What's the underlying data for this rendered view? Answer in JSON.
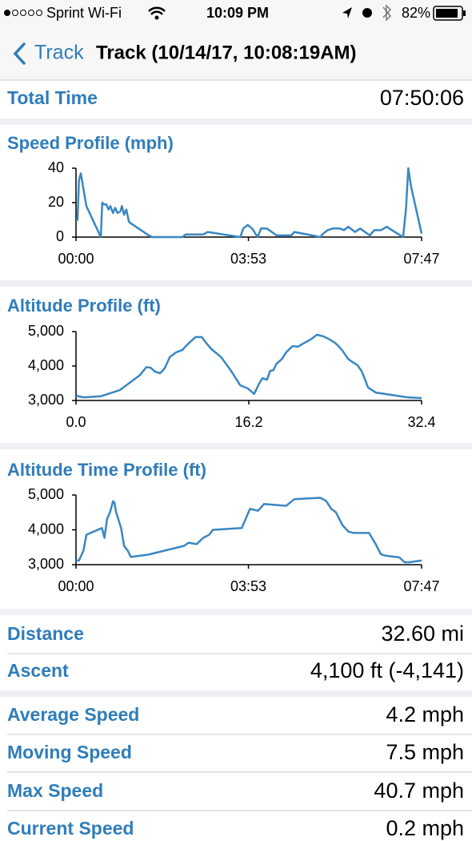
{
  "status_bar": {
    "carrier": "Sprint Wi-Fi",
    "time": "10:09 PM",
    "battery": "82%"
  },
  "nav": {
    "back": "Track",
    "title": "Track (10/14/17, 10:08:19AM)"
  },
  "summary": [
    {
      "label": "Total Time",
      "value": "07:50:06"
    }
  ],
  "chart_data": [
    {
      "type": "line",
      "title": "Speed Profile (mph)",
      "color": "#3a87c2",
      "x": [
        0,
        2,
        4,
        6.5,
        10,
        14,
        33.5,
        35.5,
        37.5,
        41,
        44,
        46.5,
        50,
        53,
        56,
        60,
        62,
        65,
        68,
        71.5,
        74,
        98.5,
        103,
        144,
        148,
        172,
        178,
        200,
        222,
        226,
        232,
        238,
        245.5,
        250,
        258,
        271,
        291,
        295,
        319,
        330,
        334,
        340,
        347,
        357,
        362,
        368,
        377,
        384,
        397,
        403,
        412,
        420,
        427,
        442,
        446,
        449,
        453,
        467
      ],
      "values": [
        10,
        10,
        33,
        37,
        28,
        18,
        0,
        20,
        19,
        19,
        16,
        18,
        14,
        17,
        14,
        15,
        18,
        13,
        16,
        9,
        8,
        1,
        0,
        0,
        1.5,
        1.5,
        3,
        1.5,
        0,
        5,
        7,
        5,
        0,
        5,
        5,
        1,
        1,
        3,
        1,
        0,
        2,
        4,
        5,
        5,
        4,
        6,
        3,
        5,
        1,
        4,
        4,
        6,
        4,
        0,
        17,
        40,
        29,
        2
      ],
      "xlim": [
        0,
        467
      ],
      "xticks": [
        {
          "value": 0,
          "label": "00:00"
        },
        {
          "value": 233,
          "label": "03:53"
        },
        {
          "value": 467,
          "label": "07:47"
        }
      ],
      "ylim": [
        0,
        40
      ],
      "yticks": [
        0,
        20,
        40
      ]
    },
    {
      "type": "line",
      "title": "Altitude Profile (ft)",
      "color": "#3a87c2",
      "x": [
        0,
        0.7,
        2.3,
        4.1,
        6,
        6.6,
        7,
        7.4,
        7.9,
        8.3,
        8.8,
        9.4,
        10,
        10.3,
        10.7,
        11.2,
        11.8,
        12.2,
        12.7,
        13.6,
        14.5,
        15.4,
        16.1,
        16.7,
        17.2,
        17.5,
        17.9,
        18.2,
        18.5,
        18.8,
        19.3,
        19.7,
        20.3,
        20.8,
        21.4,
        22,
        22.6,
        23.2,
        23.8,
        24.3,
        24.6,
        25,
        25.5,
        25.9,
        26.4,
        26.8,
        27.4,
        28.1,
        29.6,
        31.1,
        32.4
      ],
      "values": [
        3140,
        3090,
        3120,
        3300,
        3740,
        3970,
        3950,
        3840,
        3790,
        3930,
        4260,
        4400,
        4470,
        4580,
        4700,
        4840,
        4840,
        4670,
        4490,
        4260,
        3880,
        3440,
        3350,
        3190,
        3510,
        3650,
        3600,
        3860,
        3880,
        4070,
        4200,
        4400,
        4580,
        4560,
        4670,
        4770,
        4910,
        4860,
        4770,
        4670,
        4580,
        4440,
        4210,
        4120,
        4020,
        3840,
        3370,
        3230,
        3160,
        3090,
        3070
      ],
      "xlim": [
        0,
        32.4
      ],
      "xticks": [
        {
          "value": 0,
          "label": "0.0"
        },
        16.2,
        32.4
      ],
      "ylim": [
        3000,
        5000
      ],
      "yticks": [
        {
          "value": 3000,
          "label": "3,000"
        },
        {
          "value": 4000,
          "label": "4,000"
        },
        {
          "value": 5000,
          "label": "5,000"
        }
      ]
    },
    {
      "type": "line",
      "title": "Altitude Time Profile (ft)",
      "color": "#3a87c2",
      "x": [
        0,
        4,
        10,
        14,
        35,
        38.5,
        42,
        46,
        50,
        52,
        54,
        61,
        65,
        70,
        74,
        98,
        146,
        152,
        163,
        172,
        180,
        185,
        224,
        235,
        246,
        254,
        284,
        295,
        330,
        338,
        345,
        351,
        360,
        368,
        375,
        396,
        405,
        412,
        418,
        437,
        444,
        450,
        467
      ],
      "values": [
        3120,
        3120,
        3400,
        3860,
        4050,
        3770,
        4320,
        4510,
        4820,
        4780,
        4510,
        4050,
        3540,
        3400,
        3220,
        3290,
        3540,
        3630,
        3590,
        3770,
        3860,
        4000,
        4050,
        4600,
        4550,
        4740,
        4690,
        4880,
        4920,
        4830,
        4600,
        4510,
        4140,
        3950,
        3910,
        3910,
        3590,
        3300,
        3260,
        3210,
        3070,
        3070,
        3120
      ],
      "xlim": [
        0,
        467
      ],
      "xticks": [
        {
          "value": 0,
          "label": "00:00"
        },
        {
          "value": 233,
          "label": "03:53"
        },
        {
          "value": 467,
          "label": "07:47"
        }
      ],
      "ylim": [
        3000,
        5000
      ],
      "yticks": [
        {
          "value": 3000,
          "label": "3,000"
        },
        {
          "value": 4000,
          "label": "4,000"
        },
        {
          "value": 5000,
          "label": "5,000"
        }
      ]
    }
  ],
  "stats": [
    [
      {
        "label": "Distance",
        "value": "32.60 mi"
      },
      {
        "label": "Ascent",
        "value": "4,100 ft (-4,141)"
      }
    ],
    [
      {
        "label": "Average Speed",
        "value": "4.2 mph"
      },
      {
        "label": "Moving Speed",
        "value": "7.5 mph"
      },
      {
        "label": "Max Speed",
        "value": "40.7 mph"
      },
      {
        "label": "Current Speed",
        "value": "0.2 mph"
      }
    ]
  ]
}
